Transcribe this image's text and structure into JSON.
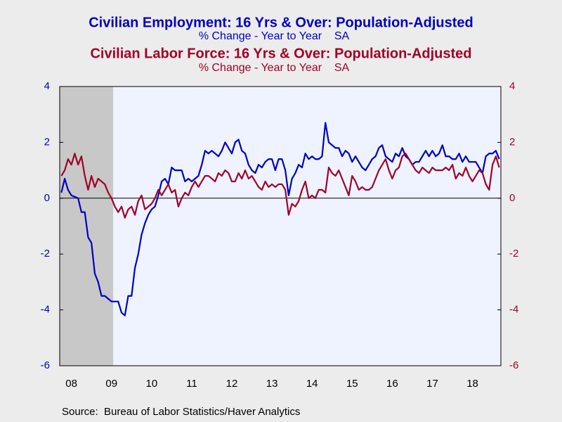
{
  "chart_data": {
    "type": "line",
    "source": "Source:  Bureau of Labor Statistics/Haver Analytics",
    "categories": [
      null,
      null,
      null,
      "08",
      null,
      null,
      null,
      null,
      null,
      null,
      null,
      null,
      null,
      null,
      null,
      "09",
      null,
      null,
      null,
      null,
      null,
      null,
      null,
      null,
      null,
      null,
      null,
      "10",
      null,
      null,
      null,
      null,
      null,
      null,
      null,
      null,
      null,
      null,
      null,
      "11",
      null,
      null,
      null,
      null,
      null,
      null,
      null,
      null,
      null,
      null,
      null,
      "12",
      null,
      null,
      null,
      null,
      null,
      null,
      null,
      null,
      null,
      null,
      null,
      "13",
      null,
      null,
      null,
      null,
      null,
      null,
      null,
      null,
      null,
      null,
      null,
      "14",
      null,
      null,
      null,
      null,
      null,
      null,
      null,
      null,
      null,
      null,
      null,
      "15",
      null,
      null,
      null,
      null,
      null,
      null,
      null,
      null,
      null,
      null,
      null,
      "16",
      null,
      null,
      null,
      null,
      null,
      null,
      null,
      null,
      null,
      null,
      null,
      "17",
      null,
      null,
      null,
      null,
      null,
      null,
      null,
      null,
      null,
      null,
      null,
      "18",
      null,
      null,
      null,
      null,
      null,
      null,
      null,
      null
    ],
    "shade": {
      "start": 0,
      "end": 15
    },
    "ylim": [
      -6,
      4
    ],
    "yticks": [
      -6,
      -4,
      -2,
      0,
      2,
      4
    ],
    "y2lim": [
      -6,
      4
    ],
    "y2ticks": [
      -6,
      -4,
      -2,
      0,
      2,
      4
    ],
    "series": [
      {
        "name": "Civilian Employment: 16 Yrs & Over: Population-Adjusted",
        "subtitle": "% Change - Year to Year    SA",
        "color": "#0000c0",
        "values": [
          0.2,
          0.7,
          0.3,
          0.1,
          0.05,
          0.0,
          -0.5,
          -0.5,
          -1.4,
          -1.6,
          -2.7,
          -3.0,
          -3.5,
          -3.5,
          -3.6,
          -3.7,
          -3.7,
          -3.7,
          -4.1,
          -4.2,
          -3.5,
          -3.5,
          -2.5,
          -2.0,
          -1.3,
          -0.9,
          -0.6,
          -0.4,
          -0.3,
          0.1,
          0.6,
          0.7,
          0.5,
          1.1,
          1.0,
          1.0,
          1.0,
          0.6,
          0.7,
          0.6,
          0.7,
          0.8,
          1.2,
          1.7,
          1.6,
          1.7,
          1.6,
          1.5,
          1.7,
          2.0,
          1.8,
          1.6,
          2.0,
          2.1,
          1.7,
          1.6,
          1.2,
          1.0,
          0.9,
          1.2,
          1.1,
          1.3,
          1.4,
          1.4,
          1.0,
          1.4,
          1.4,
          1.0,
          0.1,
          0.7,
          0.9,
          1.2,
          1.1,
          1.6,
          1.4,
          1.5,
          1.4,
          1.4,
          1.5,
          2.7,
          2.0,
          1.9,
          1.8,
          1.8,
          1.5,
          1.7,
          1.6,
          1.3,
          1.5,
          1.3,
          1.1,
          1.0,
          1.2,
          1.4,
          1.5,
          1.8,
          1.9,
          1.5,
          1.4,
          1.3,
          1.6,
          1.5,
          1.8,
          1.5,
          1.4,
          1.2,
          1.3,
          1.3,
          1.5,
          1.7,
          1.5,
          1.7,
          1.5,
          1.6,
          1.9,
          1.5,
          1.5,
          1.4,
          1.4,
          1.6,
          1.3,
          1.5,
          1.3,
          1.3,
          1.3,
          1.1,
          0.9,
          1.5,
          1.6,
          1.6,
          1.7,
          1.4
        ]
      },
      {
        "name": "Civilian Labor Force: 16 Yrs & Over: Population-Adjusted",
        "subtitle": "% Change - Year to Year    SA",
        "color": "#a00028",
        "axis": "y2",
        "values": [
          0.8,
          1.0,
          1.4,
          1.2,
          1.6,
          1.2,
          1.5,
          0.8,
          0.3,
          0.8,
          0.4,
          0.7,
          0.6,
          0.5,
          0.2,
          0.0,
          -0.3,
          -0.5,
          -0.3,
          -0.7,
          -0.4,
          -0.3,
          -0.6,
          -0.1,
          0.1,
          -0.4,
          -0.3,
          -0.2,
          0.0,
          0.3,
          0.1,
          0.3,
          0.5,
          0.2,
          0.3,
          -0.3,
          0.0,
          0.2,
          0.1,
          0.4,
          0.6,
          0.4,
          0.6,
          0.8,
          0.8,
          0.7,
          0.6,
          0.9,
          0.8,
          1.0,
          0.9,
          0.6,
          0.6,
          0.9,
          0.7,
          1.0,
          0.7,
          0.8,
          0.6,
          0.4,
          0.3,
          0.6,
          0.4,
          0.5,
          0.4,
          0.5,
          0.5,
          0.3,
          -0.6,
          -0.2,
          -0.3,
          -0.1,
          0.3,
          0.6,
          0.0,
          0.1,
          0.0,
          0.3,
          0.3,
          0.2,
          1.1,
          0.9,
          0.8,
          1.0,
          0.7,
          0.4,
          0.1,
          0.8,
          0.6,
          0.3,
          0.4,
          0.3,
          0.3,
          0.4,
          0.7,
          1.0,
          1.2,
          1.4,
          1.0,
          0.7,
          1.0,
          1.1,
          1.5,
          1.6,
          1.4,
          1.2,
          1.0,
          0.9,
          1.1,
          1.0,
          0.9,
          1.1,
          1.0,
          1.0,
          1.0,
          1.1,
          1.0,
          1.2,
          0.7,
          0.9,
          0.8,
          1.1,
          0.8,
          0.6,
          0.8,
          1.0,
          0.9,
          0.5,
          0.3,
          1.2,
          1.5,
          1.1
        ]
      }
    ]
  }
}
